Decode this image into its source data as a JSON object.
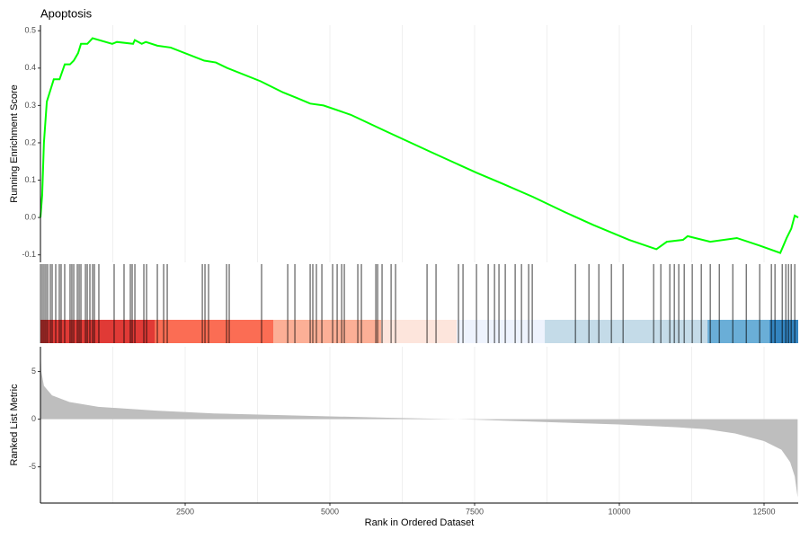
{
  "chart_data": [
    {
      "type": "line",
      "title": "Apoptosis",
      "ylabel": "Running Enrichment Score",
      "color": "#00ff00",
      "x": [
        0,
        30,
        60,
        110,
        190,
        230,
        330,
        420,
        510,
        575,
        650,
        700,
        810,
        900,
        1240,
        1320,
        1600,
        1630,
        1750,
        1820,
        2020,
        2250,
        2830,
        3030,
        3230,
        3800,
        4190,
        4430,
        4660,
        4890,
        5360,
        5980,
        6750,
        7530,
        7990,
        8510,
        9050,
        9550,
        10170,
        10640,
        10820,
        11100,
        11180,
        11570,
        12030,
        12420,
        12780,
        12890,
        12970,
        13030,
        13090
      ],
      "values": [
        0,
        0.06,
        0.2,
        0.31,
        0.35,
        0.37,
        0.37,
        0.41,
        0.41,
        0.42,
        0.44,
        0.465,
        0.465,
        0.48,
        0.465,
        0.47,
        0.465,
        0.475,
        0.465,
        0.47,
        0.46,
        0.455,
        0.42,
        0.415,
        0.4,
        0.365,
        0.335,
        0.32,
        0.305,
        0.3,
        0.275,
        0.23,
        0.175,
        0.12,
        0.09,
        0.055,
        0.015,
        -0.02,
        -0.06,
        -0.085,
        -0.065,
        -0.06,
        -0.05,
        -0.065,
        -0.055,
        -0.075,
        -0.095,
        -0.055,
        -0.03,
        0.005,
        0
      ],
      "xlim": [
        0,
        13090
      ],
      "ylim": [
        -0.12,
        0.515
      ],
      "yticks": [
        -0.1,
        {
          "value": 0,
          "label": "0.0"
        },
        0.1,
        0.2,
        0.3,
        0.4,
        0.5
      ],
      "xgrid": [
        1250,
        2500,
        3750,
        5000,
        6250,
        7500,
        8750,
        10000,
        11250,
        12500
      ]
    },
    {
      "type": "rug",
      "color": "#000000",
      "xlim": [
        0,
        13090
      ],
      "x": [
        1,
        31,
        62,
        93,
        124,
        171,
        202,
        264,
        326,
        357,
        419,
        512,
        543,
        575,
        637,
        668,
        699,
        777,
        808,
        854,
        901,
        932,
        1009,
        1273,
        1444,
        1553,
        1584,
        1631,
        1786,
        1833,
        2019,
        2128,
        2190,
        2796,
        2842,
        2904,
        3215,
        3261,
        3820,
        4271,
        4395,
        4659,
        4705,
        4767,
        4861,
        5047,
        5125,
        5203,
        5249,
        5482,
        5544,
        5793,
        5824,
        5901,
        6057,
        6134,
        6678,
        6833,
        7221,
        7299,
        7532,
        7734,
        7843,
        7920,
        8029,
        8200,
        8309,
        8433,
        8495,
        9241,
        9474,
        9645,
        9862,
        10064,
        10592,
        10716,
        10871,
        10949,
        11026,
        11120,
        11259,
        11415,
        11570,
        11726,
        11959,
        12192,
        12424,
        12626,
        12688,
        12813,
        12875,
        12921,
        12968,
        13030
      ],
      "bands": [
        {
          "start": 0,
          "end": 1972,
          "color": "#e03a36"
        },
        {
          "start": 1972,
          "end": 4022,
          "color": "#fb6d54"
        },
        {
          "start": 4022,
          "end": 5886,
          "color": "#fcaf96"
        },
        {
          "start": 5886,
          "end": 7190,
          "color": "#fde5dc"
        },
        {
          "start": 7190,
          "end": 8712,
          "color": "#eef3fd"
        },
        {
          "start": 8712,
          "end": 11523,
          "color": "#c4dbe8"
        },
        {
          "start": 11523,
          "end": 12594,
          "color": "#6aaed7"
        },
        {
          "start": 12594,
          "end": 13090,
          "color": "#3384c0"
        }
      ]
    },
    {
      "type": "area",
      "ylabel": "Ranked List Metric",
      "xlabel": "Rank in Ordered Dataset",
      "color": "#bebebe",
      "x": [
        0,
        15,
        60,
        200,
        500,
        1000,
        2000,
        3000,
        4000,
        5000,
        6000,
        7000,
        7500,
        8000,
        9000,
        10000,
        11000,
        11500,
        12000,
        12500,
        12800,
        12950,
        13030,
        13080
      ],
      "values": [
        7.5,
        5,
        3.5,
        2.5,
        1.8,
        1.3,
        0.9,
        0.6,
        0.45,
        0.3,
        0.15,
        0.03,
        -0.05,
        -0.15,
        -0.35,
        -0.55,
        -0.85,
        -1.05,
        -1.5,
        -2.3,
        -3.2,
        -4.5,
        -6,
        -8.2
      ],
      "xlim": [
        0,
        13090
      ],
      "ylim": [
        -8.8,
        7.6
      ],
      "yticks": [
        -5,
        0,
        5
      ],
      "xticks": [
        2500,
        5000,
        7500,
        10000,
        12500
      ],
      "xgrid": [
        1250,
        2500,
        3750,
        5000,
        6250,
        7500,
        8750,
        10000,
        11250,
        12500
      ]
    }
  ]
}
